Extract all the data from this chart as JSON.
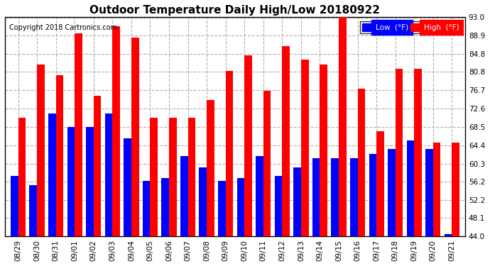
{
  "title": "Outdoor Temperature Daily High/Low 20180922",
  "copyright": "Copyright 2018 Cartronics.com",
  "categories": [
    "08/29",
    "08/30",
    "08/31",
    "09/01",
    "09/02",
    "09/03",
    "09/04",
    "09/05",
    "09/06",
    "09/07",
    "09/08",
    "09/09",
    "09/10",
    "09/11",
    "09/12",
    "09/13",
    "09/14",
    "09/15",
    "09/16",
    "09/17",
    "09/18",
    "09/19",
    "09/20",
    "09/21"
  ],
  "high": [
    70.5,
    82.5,
    80.0,
    89.5,
    75.5,
    91.0,
    88.5,
    70.5,
    70.5,
    70.5,
    74.5,
    81.0,
    84.5,
    76.5,
    86.5,
    83.5,
    82.5,
    93.5,
    77.0,
    67.5,
    81.5,
    81.5,
    65.0,
    65.0
  ],
  "low": [
    57.5,
    55.5,
    71.5,
    68.5,
    68.5,
    71.5,
    66.0,
    56.5,
    57.0,
    62.0,
    59.5,
    56.5,
    57.0,
    62.0,
    57.5,
    59.5,
    61.5,
    61.5,
    61.5,
    62.5,
    63.5,
    65.5,
    63.5,
    44.5
  ],
  "ylim_min": 44.0,
  "ylim_max": 93.0,
  "yticks": [
    44.0,
    48.1,
    52.2,
    56.2,
    60.3,
    64.4,
    68.5,
    72.6,
    76.7,
    80.8,
    84.8,
    88.9,
    93.0
  ],
  "bar_width": 0.4,
  "low_color": "#0000ff",
  "high_color": "#ff0000",
  "bg_color": "#ffffff",
  "grid_color": "#b0b0b0",
  "title_fontsize": 11,
  "copyright_fontsize": 7,
  "legend_low_label": "Low  (°F)",
  "legend_high_label": "High  (°F)"
}
